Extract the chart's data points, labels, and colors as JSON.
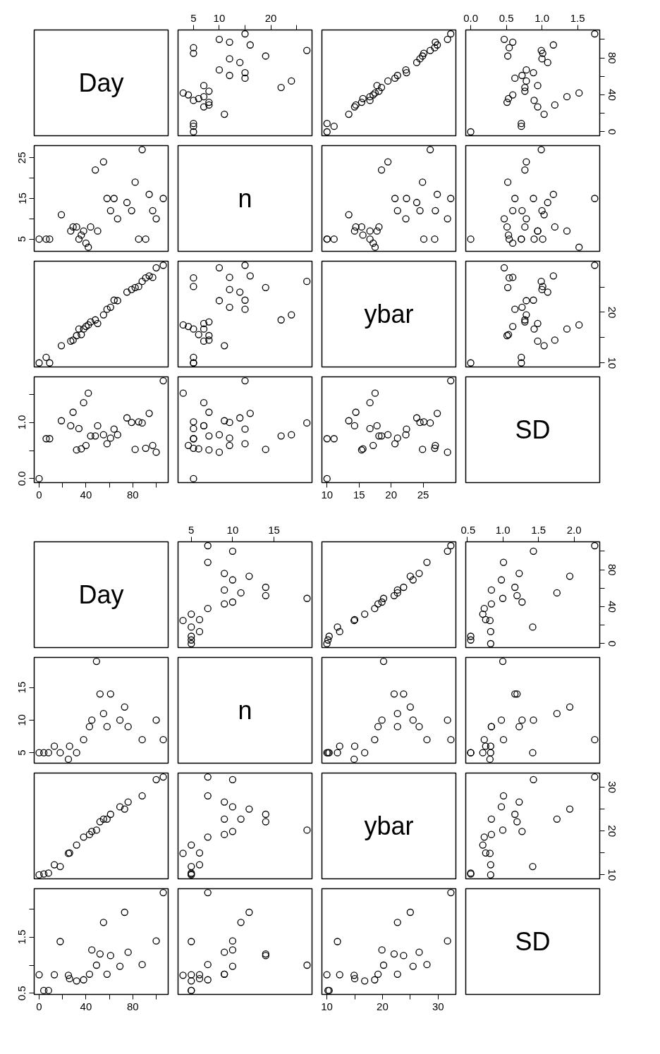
{
  "chart_data": [
    {
      "type": "other",
      "annotations": [
        "Day"
      ]
    },
    {
      "type": "scatter",
      "x": [
        5,
        5,
        5,
        11,
        7,
        8,
        8,
        5,
        6,
        7,
        4,
        3,
        8,
        22,
        7,
        24,
        15,
        12,
        15,
        10,
        14,
        12,
        19,
        5,
        27,
        5,
        16,
        12,
        10,
        15
      ],
      "values": [
        0,
        6,
        9,
        19,
        27,
        29,
        32,
        34,
        36,
        38,
        40,
        42,
        44,
        48,
        50,
        55,
        58,
        61,
        64,
        67,
        75,
        79,
        82,
        85,
        88,
        91,
        94,
        97,
        100,
        106
      ],
      "xlim": [
        2,
        28
      ],
      "ylim": [
        -4.2,
        110.2
      ],
      "xticks": [
        5,
        10,
        {
          "value": 15,
          "label": null
        },
        20,
        {
          "value": 25,
          "label": null
        }
      ],
      "tick_labels": "x",
      "marker": "circle",
      "color": "#000000"
    },
    {
      "type": "scatter",
      "x": [
        10.0,
        11.1,
        10.0,
        13.4,
        14.3,
        14.5,
        15.4,
        16.7,
        15.6,
        16.7,
        17.2,
        17.5,
        18.1,
        18.5,
        17.8,
        19.5,
        20.6,
        21.0,
        22.4,
        22.3,
        24.0,
        24.5,
        24.9,
        25.1,
        26.1,
        26.8,
        27.2,
        26.9,
        28.8,
        29.3
      ],
      "values": [
        0,
        6,
        9,
        19,
        27,
        29,
        32,
        34,
        36,
        38,
        40,
        42,
        44,
        48,
        50,
        55,
        58,
        61,
        64,
        67,
        75,
        79,
        82,
        85,
        88,
        91,
        94,
        97,
        100,
        106
      ],
      "xlim": [
        9.2,
        30.1
      ],
      "ylim": [
        -4.2,
        110.2
      ],
      "tick_labels": false,
      "marker": "circle",
      "color": "#000000"
    },
    {
      "type": "scatter",
      "x": [
        0.0,
        0.71,
        0.71,
        1.03,
        0.94,
        1.18,
        0.51,
        0.89,
        0.53,
        1.35,
        0.59,
        1.52,
        0.76,
        0.76,
        0.94,
        0.78,
        0.62,
        0.72,
        0.88,
        0.78,
        1.08,
        1.0,
        0.52,
        1.01,
        0.99,
        0.54,
        1.16,
        0.59,
        0.47,
        1.74
      ],
      "values": [
        0,
        6,
        9,
        19,
        27,
        29,
        32,
        34,
        36,
        38,
        40,
        42,
        44,
        48,
        50,
        55,
        58,
        61,
        64,
        67,
        75,
        79,
        82,
        85,
        88,
        91,
        94,
        97,
        100,
        106
      ],
      "xlim": [
        -0.07,
        1.81
      ],
      "ylim": [
        -4.2,
        110.2
      ],
      "xticks": [
        {
          "value": 0,
          "label": "0.0"
        },
        0.5,
        {
          "value": 1,
          "label": "1.0"
        },
        1.5
      ],
      "yticks": [
        0,
        {
          "value": 20,
          "label": null
        },
        40,
        {
          "value": 60,
          "label": null
        },
        80,
        {
          "value": 100,
          "label": null
        }
      ],
      "marker": "circle",
      "color": "#000000"
    },
    {
      "type": "scatter",
      "x": [
        0,
        6,
        9,
        19,
        27,
        29,
        32,
        34,
        36,
        38,
        40,
        42,
        44,
        48,
        50,
        55,
        58,
        61,
        64,
        67,
        75,
        79,
        82,
        85,
        88,
        91,
        94,
        97,
        100,
        106
      ],
      "values": [
        5,
        5,
        5,
        11,
        7,
        8,
        8,
        5,
        6,
        7,
        4,
        3,
        8,
        22,
        7,
        24,
        15,
        12,
        15,
        10,
        14,
        12,
        19,
        5,
        27,
        5,
        16,
        12,
        10,
        15
      ],
      "xlim": [
        -4.2,
        110.2
      ],
      "ylim": [
        2,
        28
      ],
      "yticks": [
        5,
        {
          "value": 10,
          "label": null
        },
        15,
        {
          "value": 20,
          "label": null
        },
        25
      ],
      "tick_labels": "y",
      "marker": "circle",
      "color": "#000000"
    },
    {
      "type": "other",
      "annotations": [
        "n"
      ]
    },
    {
      "type": "scatter",
      "x": [
        10.0,
        11.1,
        10.0,
        13.4,
        14.3,
        14.5,
        15.4,
        16.7,
        15.6,
        16.7,
        17.2,
        17.5,
        18.1,
        18.5,
        17.8,
        19.5,
        20.6,
        21.0,
        22.4,
        22.3,
        24.0,
        24.5,
        24.9,
        25.1,
        26.1,
        26.8,
        27.2,
        26.9,
        28.8,
        29.3
      ],
      "values": [
        5,
        5,
        5,
        11,
        7,
        8,
        8,
        5,
        6,
        7,
        4,
        3,
        8,
        22,
        7,
        24,
        15,
        12,
        15,
        10,
        14,
        12,
        19,
        5,
        27,
        5,
        16,
        12,
        10,
        15
      ],
      "xlim": [
        9.2,
        30.1
      ],
      "ylim": [
        2,
        28
      ],
      "tick_labels": false,
      "marker": "circle",
      "color": "#000000"
    },
    {
      "type": "scatter",
      "x": [
        0.0,
        0.71,
        0.71,
        1.03,
        0.94,
        1.18,
        0.51,
        0.89,
        0.53,
        1.35,
        0.59,
        1.52,
        0.76,
        0.76,
        0.94,
        0.78,
        0.62,
        0.72,
        0.88,
        0.78,
        1.08,
        1.0,
        0.52,
        1.01,
        0.99,
        0.54,
        1.16,
        0.59,
        0.47,
        1.74
      ],
      "values": [
        5,
        5,
        5,
        11,
        7,
        8,
        8,
        5,
        6,
        7,
        4,
        3,
        8,
        22,
        7,
        24,
        15,
        12,
        15,
        10,
        14,
        12,
        19,
        5,
        27,
        5,
        16,
        12,
        10,
        15
      ],
      "xlim": [
        -0.07,
        1.81
      ],
      "ylim": [
        2,
        28
      ],
      "tick_labels": false,
      "marker": "circle",
      "color": "#000000"
    },
    {
      "type": "scatter",
      "x": [
        0,
        6,
        9,
        19,
        27,
        29,
        32,
        34,
        36,
        38,
        40,
        42,
        44,
        48,
        50,
        55,
        58,
        61,
        64,
        67,
        75,
        79,
        82,
        85,
        88,
        91,
        94,
        97,
        100,
        106
      ],
      "values": [
        10.0,
        11.1,
        10.0,
        13.4,
        14.3,
        14.5,
        15.4,
        16.7,
        15.6,
        16.7,
        17.2,
        17.5,
        18.1,
        18.5,
        17.8,
        19.5,
        20.6,
        21.0,
        22.4,
        22.3,
        24.0,
        24.5,
        24.9,
        25.1,
        26.1,
        26.8,
        27.2,
        26.9,
        28.8,
        29.3
      ],
      "xlim": [
        -4.2,
        110.2
      ],
      "ylim": [
        9.2,
        30.1
      ],
      "tick_labels": false,
      "marker": "circle",
      "color": "#000000"
    },
    {
      "type": "scatter",
      "x": [
        5,
        5,
        5,
        11,
        7,
        8,
        8,
        5,
        6,
        7,
        4,
        3,
        8,
        22,
        7,
        24,
        15,
        12,
        15,
        10,
        14,
        12,
        19,
        5,
        27,
        5,
        16,
        12,
        10,
        15
      ],
      "values": [
        10.0,
        11.1,
        10.0,
        13.4,
        14.3,
        14.5,
        15.4,
        16.7,
        15.6,
        16.7,
        17.2,
        17.5,
        18.1,
        18.5,
        17.8,
        19.5,
        20.6,
        21.0,
        22.4,
        22.3,
        24.0,
        24.5,
        24.9,
        25.1,
        26.1,
        26.8,
        27.2,
        26.9,
        28.8,
        29.3
      ],
      "xlim": [
        2,
        28
      ],
      "ylim": [
        9.2,
        30.1
      ],
      "tick_labels": false,
      "marker": "circle",
      "color": "#000000"
    },
    {
      "type": "other",
      "annotations": [
        "ybar"
      ]
    },
    {
      "type": "scatter",
      "x": [
        0.0,
        0.71,
        0.71,
        1.03,
        0.94,
        1.18,
        0.51,
        0.89,
        0.53,
        1.35,
        0.59,
        1.52,
        0.76,
        0.76,
        0.94,
        0.78,
        0.62,
        0.72,
        0.88,
        0.78,
        1.08,
        1.0,
        0.52,
        1.01,
        0.99,
        0.54,
        1.16,
        0.59,
        0.47,
        1.74
      ],
      "values": [
        10.0,
        11.1,
        10.0,
        13.4,
        14.3,
        14.5,
        15.4,
        16.7,
        15.6,
        16.7,
        17.2,
        17.5,
        18.1,
        18.5,
        17.8,
        19.5,
        20.6,
        21.0,
        22.4,
        22.3,
        24.0,
        24.5,
        24.9,
        25.1,
        26.1,
        26.8,
        27.2,
        26.9,
        28.8,
        29.3
      ],
      "xlim": [
        -0.07,
        1.81
      ],
      "ylim": [
        9.2,
        30.1
      ],
      "yticks": [
        10,
        {
          "value": 15,
          "label": null
        },
        20,
        {
          "value": 25,
          "label": null
        }
      ],
      "tick_labels": "y",
      "marker": "circle",
      "color": "#000000"
    },
    {
      "type": "scatter",
      "x": [
        0,
        6,
        9,
        19,
        27,
        29,
        32,
        34,
        36,
        38,
        40,
        42,
        44,
        48,
        50,
        55,
        58,
        61,
        64,
        67,
        75,
        79,
        82,
        85,
        88,
        91,
        94,
        97,
        100,
        106
      ],
      "values": [
        0.0,
        0.71,
        0.71,
        1.03,
        0.94,
        1.18,
        0.51,
        0.89,
        0.53,
        1.35,
        0.59,
        1.52,
        0.76,
        0.76,
        0.94,
        0.78,
        0.62,
        0.72,
        0.88,
        0.78,
        1.08,
        1.0,
        0.52,
        1.01,
        0.99,
        0.54,
        1.16,
        0.59,
        0.47,
        1.74
      ],
      "xlim": [
        -4.2,
        110.2
      ],
      "ylim": [
        -0.07,
        1.81
      ],
      "xticks": [
        0,
        {
          "value": 20,
          "label": null
        },
        40,
        {
          "value": 60,
          "label": null
        },
        80,
        {
          "value": 100,
          "label": null
        }
      ],
      "yticks": [
        {
          "value": 0,
          "label": "0.0"
        },
        {
          "value": 0.5,
          "label": null
        },
        {
          "value": 1,
          "label": "1.0"
        },
        {
          "value": 1.5,
          "label": null
        }
      ],
      "marker": "circle",
      "color": "#000000"
    },
    {
      "type": "scatter",
      "x": [
        5,
        5,
        5,
        11,
        7,
        8,
        8,
        5,
        6,
        7,
        4,
        3,
        8,
        22,
        7,
        24,
        15,
        12,
        15,
        10,
        14,
        12,
        19,
        5,
        27,
        5,
        16,
        12,
        10,
        15
      ],
      "values": [
        0.0,
        0.71,
        0.71,
        1.03,
        0.94,
        1.18,
        0.51,
        0.89,
        0.53,
        1.35,
        0.59,
        1.52,
        0.76,
        0.76,
        0.94,
        0.78,
        0.62,
        0.72,
        0.88,
        0.78,
        1.08,
        1.0,
        0.52,
        1.01,
        0.99,
        0.54,
        1.16,
        0.59,
        0.47,
        1.74
      ],
      "xlim": [
        2,
        28
      ],
      "ylim": [
        -0.07,
        1.81
      ],
      "tick_labels": false,
      "marker": "circle",
      "color": "#000000"
    },
    {
      "type": "scatter",
      "x": [
        10.0,
        11.1,
        10.0,
        13.4,
        14.3,
        14.5,
        15.4,
        16.7,
        15.6,
        16.7,
        17.2,
        17.5,
        18.1,
        18.5,
        17.8,
        19.5,
        20.6,
        21.0,
        22.4,
        22.3,
        24.0,
        24.5,
        24.9,
        25.1,
        26.1,
        26.8,
        27.2,
        26.9,
        28.8,
        29.3
      ],
      "values": [
        0.0,
        0.71,
        0.71,
        1.03,
        0.94,
        1.18,
        0.51,
        0.89,
        0.53,
        1.35,
        0.59,
        1.52,
        0.76,
        0.76,
        0.94,
        0.78,
        0.62,
        0.72,
        0.88,
        0.78,
        1.08,
        1.0,
        0.52,
        1.01,
        0.99,
        0.54,
        1.16,
        0.59,
        0.47,
        1.74
      ],
      "xlim": [
        9.2,
        30.1
      ],
      "ylim": [
        -0.07,
        1.81
      ],
      "xticks": [
        10,
        15,
        20,
        25
      ],
      "tick_labels": "x",
      "marker": "circle",
      "color": "#000000"
    },
    {
      "type": "other",
      "annotations": [
        "SD"
      ]
    },
    {
      "type": "other",
      "annotations": [
        "Day"
      ]
    },
    {
      "type": "scatter",
      "x": [
        5,
        5,
        5,
        6,
        5,
        4,
        6,
        5,
        7,
        9,
        10,
        19,
        14,
        11,
        9,
        14,
        10,
        12,
        9,
        7,
        10,
        7
      ],
      "values": [
        0,
        4,
        8,
        13,
        18,
        25,
        26,
        32,
        38,
        43,
        45,
        49,
        52,
        55,
        58,
        61,
        69,
        73,
        76,
        88,
        100,
        106
      ],
      "xlim": [
        3.4,
        19.6
      ],
      "ylim": [
        -4.2,
        110.2
      ],
      "xticks": [
        5,
        10,
        15
      ],
      "tick_labels": "x",
      "marker": "circle",
      "color": "#000000"
    },
    {
      "type": "scatter",
      "x": [
        10.0,
        10.2,
        10.4,
        12.3,
        11.9,
        14.9,
        15.0,
        16.8,
        18.6,
        19.2,
        19.9,
        20.2,
        22.1,
        22.7,
        22.7,
        23.8,
        25.5,
        25.0,
        26.6,
        28.0,
        31.7,
        32.3
      ],
      "values": [
        0,
        4,
        8,
        13,
        18,
        25,
        26,
        32,
        38,
        43,
        45,
        49,
        52,
        55,
        58,
        61,
        69,
        73,
        76,
        88,
        100,
        106
      ],
      "xlim": [
        9.1,
        33.2
      ],
      "ylim": [
        -4.2,
        110.2
      ],
      "tick_labels": false,
      "marker": "circle",
      "color": "#000000"
    },
    {
      "type": "scatter",
      "x": [
        0.83,
        0.55,
        0.55,
        0.83,
        1.42,
        0.82,
        0.76,
        0.72,
        0.74,
        0.84,
        1.27,
        1.0,
        1.2,
        1.76,
        0.84,
        1.17,
        0.98,
        1.94,
        1.23,
        1.01,
        1.43,
        2.29
      ],
      "values": [
        0,
        4,
        8,
        13,
        18,
        25,
        26,
        32,
        38,
        43,
        45,
        49,
        52,
        55,
        58,
        61,
        69,
        73,
        76,
        88,
        100,
        106
      ],
      "xlim": [
        0.48,
        2.36
      ],
      "ylim": [
        -4.2,
        110.2
      ],
      "xticks": [
        0.5,
        {
          "value": 1,
          "label": "1.0"
        },
        1.5,
        {
          "value": 2,
          "label": "2.0"
        }
      ],
      "yticks": [
        0,
        {
          "value": 20,
          "label": null
        },
        40,
        {
          "value": 60,
          "label": null
        },
        80,
        {
          "value": 100,
          "label": null
        }
      ],
      "marker": "circle",
      "color": "#000000"
    },
    {
      "type": "scatter",
      "x": [
        0,
        4,
        8,
        13,
        18,
        25,
        26,
        32,
        38,
        43,
        45,
        49,
        52,
        55,
        58,
        61,
        69,
        73,
        76,
        88,
        100,
        106
      ],
      "values": [
        5,
        5,
        5,
        6,
        5,
        4,
        6,
        5,
        7,
        9,
        10,
        19,
        14,
        11,
        9,
        14,
        10,
        12,
        9,
        7,
        10,
        7
      ],
      "xlim": [
        -4.2,
        110.2
      ],
      "ylim": [
        3.4,
        19.6
      ],
      "yticks": [
        5,
        10,
        15
      ],
      "tick_labels": "y",
      "marker": "circle",
      "color": "#000000"
    },
    {
      "type": "other",
      "annotations": [
        "n"
      ]
    },
    {
      "type": "scatter",
      "x": [
        10.0,
        10.2,
        10.4,
        12.3,
        11.9,
        14.9,
        15.0,
        16.8,
        18.6,
        19.2,
        19.9,
        20.2,
        22.1,
        22.7,
        22.7,
        23.8,
        25.5,
        25.0,
        26.6,
        28.0,
        31.7,
        32.3
      ],
      "values": [
        5,
        5,
        5,
        6,
        5,
        4,
        6,
        5,
        7,
        9,
        10,
        19,
        14,
        11,
        9,
        14,
        10,
        12,
        9,
        7,
        10,
        7
      ],
      "xlim": [
        9.1,
        33.2
      ],
      "ylim": [
        3.4,
        19.6
      ],
      "tick_labels": false,
      "marker": "circle",
      "color": "#000000"
    },
    {
      "type": "scatter",
      "x": [
        0.83,
        0.55,
        0.55,
        0.83,
        1.42,
        0.82,
        0.76,
        0.72,
        0.74,
        0.84,
        1.27,
        1.0,
        1.2,
        1.76,
        0.84,
        1.17,
        0.98,
        1.94,
        1.23,
        1.01,
        1.43,
        2.29
      ],
      "values": [
        5,
        5,
        5,
        6,
        5,
        4,
        6,
        5,
        7,
        9,
        10,
        19,
        14,
        11,
        9,
        14,
        10,
        12,
        9,
        7,
        10,
        7
      ],
      "xlim": [
        0.48,
        2.36
      ],
      "ylim": [
        3.4,
        19.6
      ],
      "tick_labels": false,
      "marker": "circle",
      "color": "#000000"
    },
    {
      "type": "scatter",
      "x": [
        0,
        4,
        8,
        13,
        18,
        25,
        26,
        32,
        38,
        43,
        45,
        49,
        52,
        55,
        58,
        61,
        69,
        73,
        76,
        88,
        100,
        106
      ],
      "values": [
        10.0,
        10.2,
        10.4,
        12.3,
        11.9,
        14.9,
        15.0,
        16.8,
        18.6,
        19.2,
        19.9,
        20.2,
        22.1,
        22.7,
        22.7,
        23.8,
        25.5,
        25.0,
        26.6,
        28.0,
        31.7,
        32.3
      ],
      "xlim": [
        -4.2,
        110.2
      ],
      "ylim": [
        9.1,
        33.2
      ],
      "tick_labels": false,
      "marker": "circle",
      "color": "#000000"
    },
    {
      "type": "scatter",
      "x": [
        5,
        5,
        5,
        6,
        5,
        4,
        6,
        5,
        7,
        9,
        10,
        19,
        14,
        11,
        9,
        14,
        10,
        12,
        9,
        7,
        10,
        7
      ],
      "values": [
        10.0,
        10.2,
        10.4,
        12.3,
        11.9,
        14.9,
        15.0,
        16.8,
        18.6,
        19.2,
        19.9,
        20.2,
        22.1,
        22.7,
        22.7,
        23.8,
        25.5,
        25.0,
        26.6,
        28.0,
        31.7,
        32.3
      ],
      "xlim": [
        3.4,
        19.6
      ],
      "ylim": [
        9.1,
        33.2
      ],
      "tick_labels": false,
      "marker": "circle",
      "color": "#000000"
    },
    {
      "type": "other",
      "annotations": [
        "ybar"
      ]
    },
    {
      "type": "scatter",
      "x": [
        0.83,
        0.55,
        0.55,
        0.83,
        1.42,
        0.82,
        0.76,
        0.72,
        0.74,
        0.84,
        1.27,
        1.0,
        1.2,
        1.76,
        0.84,
        1.17,
        0.98,
        1.94,
        1.23,
        1.01,
        1.43,
        2.29
      ],
      "values": [
        10.0,
        10.2,
        10.4,
        12.3,
        11.9,
        14.9,
        15.0,
        16.8,
        18.6,
        19.2,
        19.9,
        20.2,
        22.1,
        22.7,
        22.7,
        23.8,
        25.5,
        25.0,
        26.6,
        28.0,
        31.7,
        32.3
      ],
      "xlim": [
        0.48,
        2.36
      ],
      "ylim": [
        9.1,
        33.2
      ],
      "yticks": [
        10,
        {
          "value": 15,
          "label": null
        },
        20,
        {
          "value": 25,
          "label": null
        },
        30
      ],
      "tick_labels": "y",
      "marker": "circle",
      "color": "#000000"
    },
    {
      "type": "scatter",
      "x": [
        0,
        4,
        8,
        13,
        18,
        25,
        26,
        32,
        38,
        43,
        45,
        49,
        52,
        55,
        58,
        61,
        69,
        73,
        76,
        88,
        100,
        106
      ],
      "values": [
        0.83,
        0.55,
        0.55,
        0.83,
        1.42,
        0.82,
        0.76,
        0.72,
        0.74,
        0.84,
        1.27,
        1.0,
        1.2,
        1.76,
        0.84,
        1.17,
        0.98,
        1.94,
        1.23,
        1.01,
        1.43,
        2.29
      ],
      "xlim": [
        -4.2,
        110.2
      ],
      "ylim": [
        0.48,
        2.36
      ],
      "xticks": [
        0,
        {
          "value": 20,
          "label": null
        },
        40,
        {
          "value": 60,
          "label": null
        },
        80,
        {
          "value": 100,
          "label": null
        }
      ],
      "yticks": [
        0.5,
        {
          "value": 1,
          "label": null
        },
        1.5,
        {
          "value": 2,
          "label": null
        }
      ],
      "marker": "circle",
      "color": "#000000"
    },
    {
      "type": "scatter",
      "x": [
        5,
        5,
        5,
        6,
        5,
        4,
        6,
        5,
        7,
        9,
        10,
        19,
        14,
        11,
        9,
        14,
        10,
        12,
        9,
        7,
        10,
        7
      ],
      "values": [
        0.83,
        0.55,
        0.55,
        0.83,
        1.42,
        0.82,
        0.76,
        0.72,
        0.74,
        0.84,
        1.27,
        1.0,
        1.2,
        1.76,
        0.84,
        1.17,
        0.98,
        1.94,
        1.23,
        1.01,
        1.43,
        2.29
      ],
      "xlim": [
        3.4,
        19.6
      ],
      "ylim": [
        0.48,
        2.36
      ],
      "tick_labels": false,
      "marker": "circle",
      "color": "#000000"
    },
    {
      "type": "scatter",
      "x": [
        10.0,
        10.2,
        10.4,
        12.3,
        11.9,
        14.9,
        15.0,
        16.8,
        18.6,
        19.2,
        19.9,
        20.2,
        22.1,
        22.7,
        22.7,
        23.8,
        25.5,
        25.0,
        26.6,
        28.0,
        31.7,
        32.3
      ],
      "values": [
        0.83,
        0.55,
        0.55,
        0.83,
        1.42,
        0.82,
        0.76,
        0.72,
        0.74,
        0.84,
        1.27,
        1.0,
        1.2,
        1.76,
        0.84,
        1.17,
        0.98,
        1.94,
        1.23,
        1.01,
        1.43,
        2.29
      ],
      "xlim": [
        9.1,
        33.2
      ],
      "ylim": [
        0.48,
        2.36
      ],
      "xticks": [
        10,
        {
          "value": 15,
          "label": null
        },
        20,
        {
          "value": 25,
          "label": null
        },
        30
      ],
      "tick_labels": "x",
      "marker": "circle",
      "color": "#000000"
    },
    {
      "type": "other",
      "annotations": [
        "SD"
      ]
    }
  ]
}
